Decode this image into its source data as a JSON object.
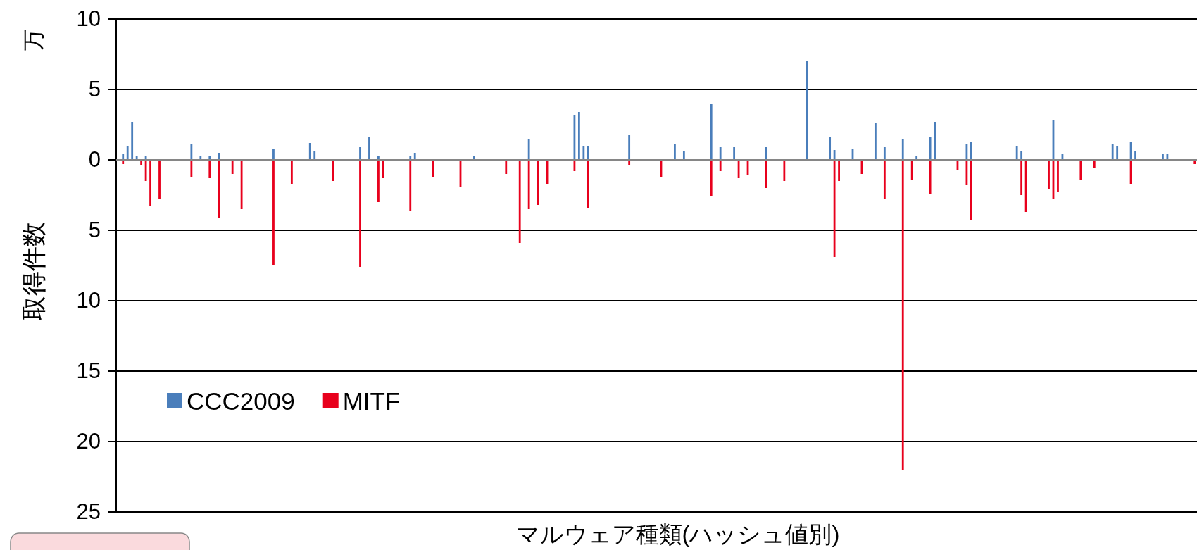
{
  "chart_data": {
    "type": "bar",
    "xlabel": "マルウェア種類(ハッシュ値別)",
    "ylabel": "取得件数",
    "annotations": [
      "万"
    ],
    "categories": [
      null,
      null,
      null,
      null,
      null,
      null,
      null,
      null,
      null,
      null,
      null,
      null,
      null,
      null,
      null,
      null,
      null,
      null,
      null,
      null,
      null,
      null,
      null,
      null,
      null,
      null,
      null,
      null,
      null,
      null,
      null,
      null,
      null,
      null,
      null,
      null,
      null,
      null,
      null,
      null,
      null,
      null,
      null,
      null,
      null,
      null,
      null,
      null,
      null,
      null,
      null,
      null,
      null,
      null,
      null,
      null,
      null,
      null,
      null,
      null,
      null,
      null,
      null,
      null,
      null,
      null,
      null,
      null,
      null,
      null,
      null,
      null,
      null,
      null,
      null,
      null,
      null,
      null,
      null,
      null,
      null,
      null,
      null,
      null,
      null,
      null,
      null,
      null,
      null,
      null,
      null,
      null,
      null,
      null,
      null,
      null,
      null,
      null,
      null,
      null,
      null,
      null,
      null,
      null,
      null,
      null,
      null,
      null,
      null,
      null,
      null,
      null,
      null,
      null,
      null,
      null,
      null,
      null,
      null,
      null,
      null,
      null,
      null,
      null,
      null,
      null,
      null,
      null,
      null,
      null,
      null,
      null,
      null,
      null,
      null,
      null,
      null,
      null,
      null,
      null,
      null,
      null,
      null,
      null,
      null,
      null,
      null,
      null,
      null,
      null,
      null,
      null,
      null,
      null,
      null,
      null,
      null,
      null,
      null,
      null,
      null,
      null,
      null,
      null,
      null,
      null,
      null,
      null,
      null,
      null,
      null,
      null,
      null,
      null,
      null,
      null,
      null,
      null,
      null,
      null,
      null,
      null,
      null,
      null,
      null,
      null,
      null,
      null,
      null,
      null,
      null,
      null,
      null,
      null,
      null,
      null,
      null,
      null,
      null,
      null,
      null,
      null,
      null,
      null,
      null,
      null,
      null,
      null,
      null,
      null,
      null,
      null,
      null,
      null,
      null,
      null,
      null,
      null,
      null,
      null,
      null,
      null,
      null,
      null,
      null,
      null,
      null,
      null,
      null,
      null,
      null,
      null,
      null,
      null,
      null,
      null,
      null
    ],
    "series": [
      {
        "name": "CCC2009",
        "color": "#4a7ebb",
        "values": [
          null,
          0.4,
          1.0,
          2.7,
          0.3,
          null,
          0.3,
          null,
          null,
          null,
          null,
          null,
          null,
          null,
          null,
          null,
          1.1,
          null,
          0.3,
          null,
          0.3,
          null,
          0.5,
          null,
          null,
          null,
          null,
          null,
          null,
          null,
          null,
          null,
          null,
          null,
          0.8,
          null,
          null,
          null,
          null,
          null,
          null,
          null,
          1.2,
          0.6,
          null,
          null,
          null,
          null,
          null,
          null,
          null,
          null,
          null,
          0.9,
          null,
          1.6,
          null,
          0.3,
          null,
          null,
          null,
          null,
          null,
          null,
          0.3,
          0.5,
          null,
          null,
          null,
          null,
          null,
          null,
          null,
          null,
          null,
          null,
          null,
          null,
          0.3,
          null,
          null,
          null,
          null,
          null,
          null,
          null,
          null,
          null,
          null,
          null,
          1.5,
          null,
          null,
          null,
          null,
          null,
          null,
          null,
          null,
          null,
          3.2,
          3.4,
          1.0,
          1.0,
          null,
          null,
          null,
          null,
          null,
          null,
          null,
          null,
          1.8,
          null,
          null,
          null,
          null,
          null,
          null,
          null,
          null,
          null,
          1.1,
          null,
          0.6,
          null,
          null,
          null,
          null,
          null,
          4.0,
          null,
          0.9,
          null,
          null,
          0.9,
          null,
          null,
          null,
          null,
          null,
          null,
          0.9,
          null,
          null,
          null,
          null,
          null,
          null,
          null,
          null,
          7.0,
          null,
          null,
          null,
          null,
          1.6,
          0.7,
          null,
          null,
          null,
          0.8,
          null,
          null,
          null,
          null,
          2.6,
          null,
          0.9,
          null,
          null,
          null,
          1.5,
          null,
          null,
          0.3,
          null,
          null,
          1.6,
          2.7,
          null,
          null,
          null,
          null,
          null,
          null,
          1.1,
          1.3,
          null,
          null,
          null,
          null,
          null,
          null,
          null,
          null,
          null,
          1.0,
          0.6,
          null,
          null,
          null,
          null,
          null,
          null,
          2.8,
          null,
          0.4,
          null,
          null,
          null,
          null,
          null,
          null,
          null,
          null,
          null,
          null,
          1.1,
          1.0,
          null,
          null,
          1.3,
          0.6,
          null,
          null,
          null,
          null,
          null,
          0.4,
          0.4,
          null,
          null,
          null,
          null,
          null,
          null
        ]
      },
      {
        "name": "MITF",
        "color": "#e8001c",
        "values": [
          null,
          -0.3,
          null,
          null,
          null,
          -0.4,
          -1.5,
          -3.3,
          null,
          -2.8,
          null,
          null,
          null,
          null,
          null,
          null,
          -1.2,
          null,
          null,
          null,
          -1.3,
          null,
          -4.1,
          null,
          null,
          -1.0,
          null,
          -3.5,
          null,
          null,
          null,
          null,
          null,
          null,
          -7.5,
          null,
          null,
          null,
          -1.7,
          null,
          null,
          null,
          null,
          null,
          null,
          null,
          null,
          -1.5,
          null,
          null,
          null,
          null,
          null,
          -7.6,
          null,
          null,
          null,
          -3.0,
          -1.3,
          null,
          null,
          null,
          null,
          null,
          -3.6,
          null,
          null,
          null,
          null,
          -1.2,
          null,
          null,
          null,
          null,
          null,
          -1.9,
          null,
          null,
          null,
          null,
          null,
          null,
          null,
          null,
          null,
          -1.0,
          null,
          null,
          -5.9,
          null,
          -3.5,
          null,
          -3.2,
          null,
          -1.7,
          null,
          null,
          null,
          null,
          null,
          -0.8,
          null,
          null,
          -3.4,
          null,
          null,
          null,
          null,
          null,
          null,
          null,
          null,
          -0.4,
          null,
          null,
          null,
          null,
          null,
          null,
          -1.2,
          null,
          null,
          null,
          null,
          null,
          null,
          null,
          null,
          null,
          null,
          -2.6,
          null,
          -0.8,
          null,
          null,
          null,
          -1.3,
          null,
          -1.1,
          null,
          null,
          null,
          -2.0,
          null,
          null,
          null,
          -1.5,
          null,
          null,
          null,
          null,
          null,
          null,
          null,
          null,
          null,
          null,
          -6.9,
          -1.5,
          null,
          null,
          null,
          null,
          -1.0,
          null,
          null,
          null,
          null,
          -2.8,
          null,
          null,
          null,
          -22.0,
          null,
          -1.4,
          null,
          null,
          null,
          -2.4,
          null,
          null,
          null,
          null,
          null,
          -0.7,
          null,
          -1.8,
          -4.3,
          null,
          null,
          null,
          null,
          null,
          null,
          null,
          null,
          null,
          null,
          -2.5,
          -3.7,
          null,
          null,
          null,
          null,
          -2.1,
          -2.8,
          -2.3,
          null,
          null,
          null,
          null,
          -1.4,
          null,
          null,
          -0.6,
          null,
          null,
          null,
          null,
          null,
          null,
          null,
          -1.7,
          null,
          null,
          null,
          null,
          null,
          null,
          null,
          null,
          null,
          null,
          null,
          null,
          null,
          -0.3
        ]
      }
    ],
    "ylim": [
      -25,
      10
    ],
    "yticks": [
      10,
      5,
      0,
      {
        "value": -5,
        "label": "5"
      },
      {
        "value": -10,
        "label": "10"
      },
      {
        "value": -15,
        "label": "15"
      },
      {
        "value": -20,
        "label": "20"
      },
      {
        "value": -25,
        "label": "25"
      }
    ],
    "grid": "y",
    "legend": "bottom left",
    "tick_labels": "y"
  }
}
